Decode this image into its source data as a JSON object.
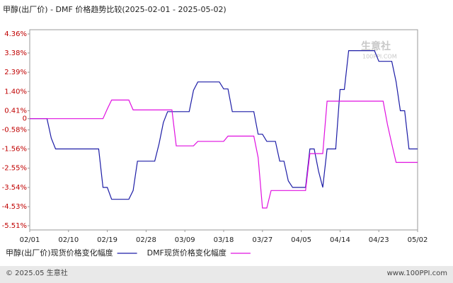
{
  "chart_data": {
    "type": "line",
    "title": "甲醇(出厂价) - DMF 价格趋势比较(2025-02-01 - 2025-05-02)",
    "watermark": "生意社",
    "watermark_url": "100PPI.COM",
    "footer_left": "© 2025.05 生意社",
    "footer_right": "www.100PPI.com",
    "categories": [
      "02/01",
      null,
      null,
      null,
      null,
      null,
      null,
      null,
      null,
      "02/10",
      null,
      null,
      null,
      null,
      null,
      null,
      null,
      null,
      "02/19",
      null,
      null,
      null,
      null,
      null,
      null,
      null,
      null,
      "02/28",
      null,
      null,
      null,
      null,
      null,
      null,
      null,
      null,
      "03/09",
      null,
      null,
      null,
      null,
      null,
      null,
      null,
      null,
      "03/18",
      null,
      null,
      null,
      null,
      null,
      null,
      null,
      null,
      "03/27",
      null,
      null,
      null,
      null,
      null,
      null,
      null,
      null,
      "04/05",
      null,
      null,
      null,
      null,
      null,
      null,
      null,
      null,
      "04/14",
      null,
      null,
      null,
      null,
      null,
      null,
      null,
      null,
      "04/23",
      null,
      null,
      null,
      null,
      null,
      null,
      null,
      null,
      "05/02"
    ],
    "ylim": [
      -5.51,
      4.36
    ],
    "yticks": [
      {
        "value": 4.36,
        "label": "4.36%"
      },
      {
        "value": 3.38,
        "label": "3.38%"
      },
      {
        "value": 2.39,
        "label": "2.39%"
      },
      {
        "value": 1.4,
        "label": "1.40%"
      },
      {
        "value": 0.41,
        "label": "0.41%"
      },
      0,
      {
        "value": -0.58,
        "label": "-0.58%"
      },
      {
        "value": -1.56,
        "label": "-1.56%"
      },
      {
        "value": -2.55,
        "label": "-2.55%"
      },
      {
        "value": -3.54,
        "label": "-3.54%"
      },
      {
        "value": -4.53,
        "label": "-4.53%"
      },
      {
        "value": -5.51,
        "label": "-5.51%"
      }
    ],
    "grid": false,
    "series": [
      {
        "name": "甲醇(出厂价)现货价格变化幅度",
        "color": "#1c1ca6",
        "values": [
          0,
          0,
          0,
          0,
          0,
          -1.0,
          -1.56,
          -1.56,
          -1.56,
          -1.56,
          -1.56,
          -1.56,
          -1.56,
          -1.56,
          -1.56,
          -1.56,
          -1.56,
          -3.54,
          -3.54,
          -4.15,
          -4.15,
          -4.15,
          -4.15,
          -4.15,
          -3.7,
          -2.19,
          -2.19,
          -2.19,
          -2.19,
          -2.19,
          -1.3,
          -0.2,
          0.36,
          0.36,
          0.36,
          0.36,
          0.36,
          0.36,
          1.46,
          1.89,
          1.89,
          1.89,
          1.89,
          1.89,
          1.89,
          1.53,
          1.53,
          0.36,
          0.36,
          0.36,
          0.36,
          0.36,
          0.36,
          -0.8,
          -0.8,
          -1.17,
          -1.17,
          -1.17,
          -2.19,
          -2.19,
          -3.2,
          -3.54,
          -3.54,
          -3.54,
          -3.54,
          -1.56,
          -1.56,
          -2.7,
          -3.54,
          -1.56,
          -1.56,
          -1.56,
          1.5,
          1.5,
          3.5,
          3.5,
          3.5,
          3.5,
          3.5,
          3.5,
          3.5,
          2.95,
          2.95,
          2.95,
          2.95,
          1.9,
          0.41,
          0.41,
          -1.56,
          -1.56,
          -1.56
        ]
      },
      {
        "name": "DMF现货价格变化幅度",
        "color": "#e010e0",
        "values": [
          0,
          0,
          0,
          0,
          0,
          0,
          0,
          0,
          0,
          0,
          0,
          0,
          0,
          0,
          0,
          0,
          0,
          0,
          0.5,
          0.96,
          0.96,
          0.96,
          0.96,
          0.96,
          0.45,
          0.45,
          0.45,
          0.45,
          0.45,
          0.45,
          0.45,
          0.45,
          0.45,
          0.45,
          -1.4,
          -1.4,
          -1.4,
          -1.4,
          -1.4,
          -1.17,
          -1.17,
          -1.17,
          -1.17,
          -1.17,
          -1.17,
          -1.17,
          -0.9,
          -0.9,
          -0.9,
          -0.9,
          -0.9,
          -0.9,
          -0.9,
          -2,
          -4.6,
          -4.6,
          -3.7,
          -3.7,
          -3.7,
          -3.7,
          -3.7,
          -3.7,
          -3.7,
          -3.7,
          -3.7,
          -1.8,
          -1.8,
          -1.8,
          -1.8,
          0.9,
          0.9,
          0.9,
          0.9,
          0.9,
          0.9,
          0.9,
          0.9,
          0.9,
          0.9,
          0.9,
          0.9,
          0.9,
          0.9,
          -0.3,
          -1.3,
          -2.25,
          -2.25,
          -2.25,
          -2.25,
          -2.25,
          -2.25
        ]
      }
    ]
  }
}
